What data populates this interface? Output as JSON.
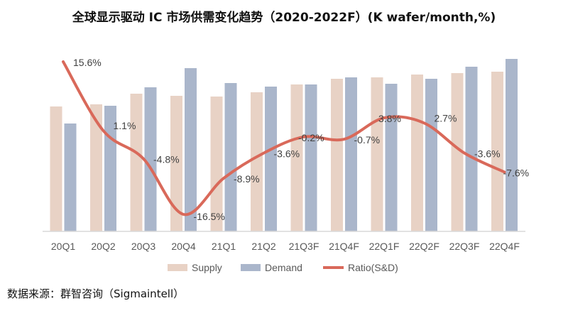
{
  "chart_data": {
    "type": "bar+line",
    "title": "全球显示驱动 IC 市场供需变化趋势（2020-2022F）(K wafer/month,%)",
    "categories": [
      "20Q1",
      "20Q2",
      "20Q3",
      "20Q4",
      "21Q1",
      "21Q2",
      "21Q3F",
      "21Q4F",
      "22Q1F",
      "22Q2F",
      "22Q3F",
      "22Q4F"
    ],
    "series": [
      {
        "name": "Supply",
        "type": "bar",
        "color": "#e8d2c5",
        "values": [
          176,
          179,
          194,
          191,
          190,
          196,
          207,
          215,
          217,
          221,
          223,
          225
        ]
      },
      {
        "name": "Demand",
        "type": "bar",
        "color": "#aab6cb",
        "values": [
          152,
          177,
          203,
          230,
          209,
          204,
          207,
          217,
          208,
          215,
          232,
          243
        ]
      },
      {
        "name": "Ratio(S&D)",
        "type": "line",
        "color": "#d9695a",
        "values": [
          15.6,
          1.1,
          -4.8,
          -16.5,
          -8.9,
          -3.6,
          -0.2,
          -0.7,
          3.8,
          2.7,
          -3.6,
          -7.6
        ],
        "labels": [
          "15.6%",
          "1.1%",
          "-4.8%",
          "-16.5%",
          "-8.9%",
          "-3.6%",
          "-0.2%",
          "-0.7%",
          "3.8%",
          "2.7%",
          "-3.6%",
          "-7.6%"
        ]
      }
    ],
    "legend": "bottom",
    "grid": false,
    "y_axis_visible": false
  },
  "source": "数据来源：群智咨询（Sigmaintell）"
}
